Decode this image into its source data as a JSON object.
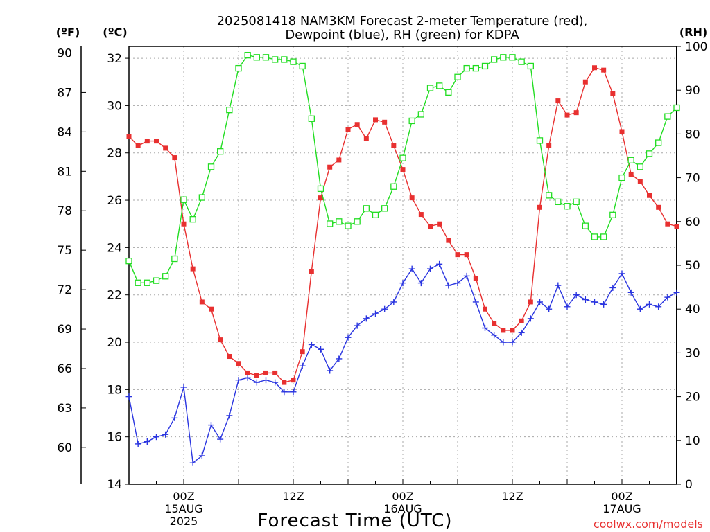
{
  "chart_data": {
    "type": "line",
    "title_line1": "2025081418 NAM3KM Forecast 2-meter Temperature (red),",
    "title_line2": "Dewpoint (blue), RH (green) for KDPA",
    "xlabel": "Forecast Time (UTC)",
    "watermark": "coolwx.com/models",
    "axis_left_f": {
      "unit_label": "(ºF)",
      "ticks": [
        "90",
        "87",
        "84",
        "81",
        "78",
        "75",
        "72",
        "69",
        "66",
        "63",
        "60"
      ],
      "tick_values": [
        90,
        87,
        84,
        81,
        78,
        75,
        72,
        69,
        66,
        63,
        60
      ]
    },
    "axis_left_c": {
      "unit_label": "(ºC)",
      "range": [
        14,
        32.5
      ],
      "ticks": [
        "32",
        "30",
        "28",
        "26",
        "24",
        "22",
        "20",
        "18",
        "16",
        "14"
      ],
      "tick_values": [
        32,
        30,
        28,
        26,
        24,
        22,
        20,
        18,
        16,
        14
      ]
    },
    "axis_right_rh": {
      "unit_label": "(RH)",
      "range": [
        0,
        100
      ],
      "ticks": [
        "100",
        "90",
        "80",
        "70",
        "60",
        "50",
        "40",
        "30",
        "20",
        "10",
        "0"
      ],
      "tick_values": [
        100,
        90,
        80,
        70,
        60,
        50,
        40,
        30,
        20,
        10,
        0
      ]
    },
    "x_axis": {
      "range_hours": [
        18,
        78
      ],
      "hour_step": 1,
      "first_hour": 18,
      "ticks": [
        {
          "hour": 24,
          "lines": [
            "00Z",
            "15AUG",
            "2025"
          ]
        },
        {
          "hour": 36,
          "lines": [
            "12Z"
          ]
        },
        {
          "hour": 48,
          "lines": [
            "00Z",
            "16AUG"
          ]
        },
        {
          "hour": 60,
          "lines": [
            "12Z"
          ]
        },
        {
          "hour": 72,
          "lines": [
            "00Z",
            "17AUG"
          ]
        }
      ]
    },
    "grid": true,
    "series": [
      {
        "name": "Temperature",
        "color": "#e83030",
        "marker": "filled-square",
        "axis": "celsius",
        "values": [
          28.7,
          28.3,
          28.5,
          28.5,
          28.2,
          27.8,
          25.0,
          23.1,
          21.7,
          21.4,
          20.1,
          19.4,
          19.1,
          18.7,
          18.6,
          18.7,
          18.7,
          18.3,
          18.4,
          19.6,
          23.0,
          26.1,
          27.4,
          27.7,
          29.0,
          29.2,
          28.6,
          29.4,
          29.3,
          28.3,
          27.3,
          26.1,
          25.4,
          24.9,
          25.0,
          24.3,
          23.7,
          23.7,
          22.7,
          21.4,
          20.8,
          20.5,
          20.5,
          20.9,
          21.7,
          25.7,
          28.3,
          30.2,
          29.6,
          29.7,
          31.0,
          31.6,
          31.5,
          30.5,
          28.9,
          27.1,
          26.8,
          26.2,
          25.7,
          25.0,
          24.9
        ]
      },
      {
        "name": "Dewpoint",
        "color": "#2a35e0",
        "marker": "plus",
        "axis": "celsius",
        "values": [
          17.7,
          15.7,
          15.8,
          16.0,
          16.1,
          16.8,
          18.1,
          14.9,
          15.2,
          16.5,
          15.9,
          16.9,
          18.4,
          18.5,
          18.3,
          18.4,
          18.3,
          17.9,
          17.9,
          19.0,
          19.9,
          19.7,
          18.8,
          19.3,
          20.2,
          20.7,
          21.0,
          21.2,
          21.4,
          21.7,
          22.5,
          23.1,
          22.5,
          23.1,
          23.3,
          22.4,
          22.5,
          22.8,
          21.7,
          20.6,
          20.3,
          20.0,
          20.0,
          20.4,
          21.0,
          21.7,
          21.4,
          22.4,
          21.5,
          22.0,
          21.8,
          21.7,
          21.6,
          22.3,
          22.9,
          22.1,
          21.4,
          21.6,
          21.5,
          21.9,
          22.1
        ]
      },
      {
        "name": "RH",
        "color": "#22dd22",
        "marker": "open-square",
        "axis": "rh",
        "values": [
          51,
          46,
          46,
          46.5,
          47.5,
          51.5,
          65,
          60.5,
          65.5,
          72.5,
          76,
          85.5,
          95,
          98,
          97.5,
          97.5,
          97,
          97,
          96.5,
          95.5,
          83.5,
          67.5,
          59.5,
          60,
          59,
          60,
          63,
          61.5,
          63,
          68,
          74.5,
          83,
          84.5,
          90.5,
          91,
          89.5,
          93,
          95,
          95,
          95.5,
          97,
          97.5,
          97.5,
          96.5,
          95.5,
          78.5,
          66,
          64.5,
          63.5,
          64.5,
          59,
          56.5,
          56.5,
          61.5,
          70,
          74,
          72.5,
          75.5,
          78,
          84,
          86
        ]
      }
    ]
  }
}
